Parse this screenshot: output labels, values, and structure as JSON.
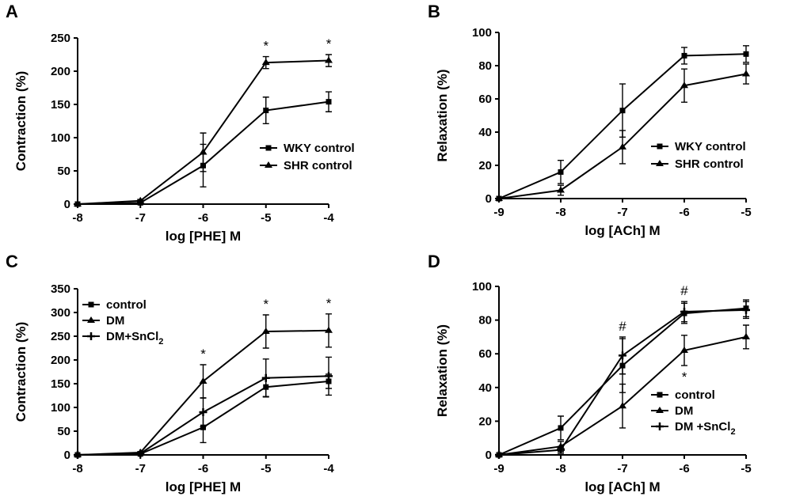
{
  "chart_data": [
    {
      "panel": "A",
      "type": "line",
      "xlabel": "log [PHE] M",
      "ylabel": "Contraction (%)",
      "xlim": [
        -8,
        -4
      ],
      "ylim": [
        0,
        250
      ],
      "xticks": [
        -8,
        -7,
        -6,
        -5,
        -4
      ],
      "yticks": [
        0,
        50,
        100,
        150,
        200,
        250
      ],
      "x": [
        -8,
        -7,
        -6,
        -5,
        -4
      ],
      "series": [
        {
          "name": "WKY control",
          "marker": "square",
          "values": [
            0,
            2,
            58,
            141,
            154
          ],
          "errors": [
            0,
            1,
            32,
            20,
            15
          ]
        },
        {
          "name": "SHR control",
          "marker": "triangle",
          "values": [
            0,
            5,
            78,
            213,
            216
          ],
          "errors": [
            0,
            2,
            29,
            9,
            9
          ]
        }
      ],
      "annotations": [
        {
          "x": -5,
          "text": "*"
        },
        {
          "x": -4,
          "text": "*"
        }
      ],
      "legend": "right"
    },
    {
      "panel": "B",
      "type": "line",
      "xlabel": "log [ACh] M",
      "ylabel": "Relaxation (%)",
      "xlim": [
        -9,
        -5
      ],
      "ylim": [
        0,
        100
      ],
      "xticks": [
        -9,
        -8,
        -7,
        -6,
        -5
      ],
      "yticks": [
        0,
        20,
        40,
        60,
        80,
        100
      ],
      "x": [
        -9,
        -8,
        -7,
        -6,
        -5
      ],
      "series": [
        {
          "name": "WKY control",
          "marker": "square",
          "values": [
            0,
            16,
            53,
            86,
            87
          ],
          "errors": [
            0,
            7,
            16,
            5,
            5
          ]
        },
        {
          "name": "SHR control",
          "marker": "triangle",
          "values": [
            0,
            5,
            31,
            68,
            75
          ],
          "errors": [
            0,
            3,
            10,
            10,
            6
          ]
        }
      ],
      "annotations": [],
      "legend": "lower-right"
    },
    {
      "panel": "C",
      "type": "line",
      "xlabel": "log [PHE] M",
      "ylabel": "Contraction (%)",
      "xlim": [
        -8,
        -4
      ],
      "ylim": [
        0,
        350
      ],
      "xticks": [
        -8,
        -7,
        -6,
        -5,
        -4
      ],
      "yticks": [
        0,
        50,
        100,
        150,
        200,
        250,
        300,
        350
      ],
      "x": [
        -8,
        -7,
        -6,
        -5,
        -4
      ],
      "series": [
        {
          "name": "control",
          "marker": "square",
          "values": [
            0,
            2,
            58,
            143,
            155
          ],
          "errors": [
            0,
            1,
            32,
            20,
            15
          ]
        },
        {
          "name": "DM",
          "marker": "triangle",
          "values": [
            0,
            5,
            155,
            260,
            262
          ],
          "errors": [
            0,
            2,
            35,
            35,
            35
          ]
        },
        {
          "name": "DM+SnCl",
          "sub": "2",
          "marker": "cross",
          "values": [
            0,
            3,
            90,
            162,
            166
          ],
          "errors": [
            0,
            2,
            30,
            40,
            40
          ]
        }
      ],
      "annotations": [
        {
          "x": -6,
          "text": "*"
        },
        {
          "x": -5,
          "text": "*"
        },
        {
          "x": -4,
          "text": "*"
        }
      ],
      "legend": "top-left"
    },
    {
      "panel": "D",
      "type": "line",
      "xlabel": "log [ACh] M",
      "ylabel": "Relaxation (%)",
      "xlim": [
        -9,
        -5
      ],
      "ylim": [
        0,
        100
      ],
      "xticks": [
        -9,
        -8,
        -7,
        -6,
        -5
      ],
      "yticks": [
        0,
        20,
        40,
        60,
        80,
        100
      ],
      "x": [
        -9,
        -8,
        -7,
        -6,
        -5
      ],
      "series": [
        {
          "name": "control",
          "marker": "square",
          "values": [
            0,
            16,
            53,
            84,
            87
          ],
          "errors": [
            0,
            7,
            16,
            6,
            5
          ]
        },
        {
          "name": "DM",
          "marker": "triangle",
          "values": [
            0,
            5,
            29,
            62,
            70
          ],
          "errors": [
            0,
            3,
            13,
            9,
            7
          ]
        },
        {
          "name": "DM +SnCl",
          "sub": "2",
          "marker": "cross",
          "values": [
            0,
            3,
            59,
            85,
            86
          ],
          "errors": [
            0,
            2,
            11,
            6,
            5
          ]
        }
      ],
      "annotations": [
        {
          "x": -7,
          "text": "#",
          "pos": "above"
        },
        {
          "x": -6,
          "text": "#",
          "pos": "above"
        },
        {
          "x": -6,
          "text": "*",
          "pos": "below"
        }
      ],
      "legend": "lower-right"
    }
  ]
}
